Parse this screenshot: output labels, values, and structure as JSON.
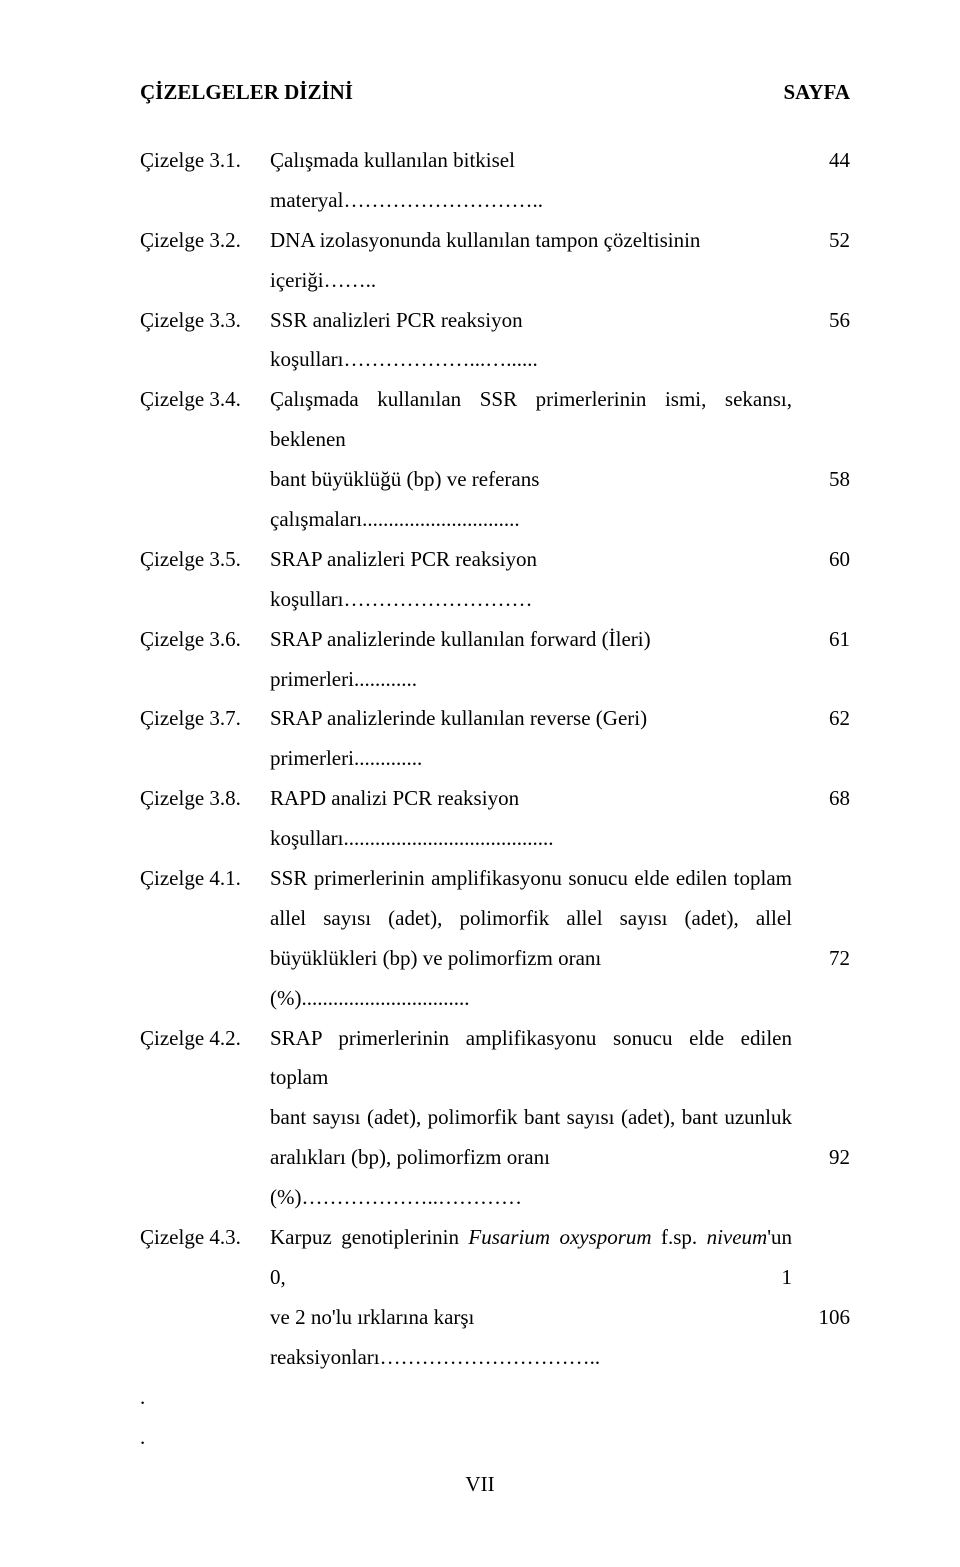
{
  "header": {
    "left": "ÇİZELGELER DİZİNİ",
    "right": "SAYFA"
  },
  "entries": [
    {
      "label": "Çizelge 3.1.",
      "lines": [
        {
          "text": "Çalışmada kullanılan bitkisel materyal………………………..",
          "page": "44",
          "justify": false
        }
      ]
    },
    {
      "label": "Çizelge 3.2.",
      "lines": [
        {
          "text": "DNA izolasyonunda kullanılan tampon çözeltisinin içeriği……..",
          "page": "52",
          "justify": false
        }
      ]
    },
    {
      "label": "Çizelge 3.3.",
      "lines": [
        {
          "text": "SSR analizleri PCR reaksiyon koşulları………………...…......",
          "page": "56",
          "justify": false
        }
      ]
    },
    {
      "label": "Çizelge 3.4.",
      "lines": [
        {
          "text": "Çalışmada kullanılan SSR primerlerinin ismi, sekansı, beklenen",
          "page": "",
          "justify": true
        },
        {
          "text": "bant büyüklüğü (bp) ve referans çalışmaları..............................",
          "page": "58",
          "justify": false
        }
      ]
    },
    {
      "label": "Çizelge 3.5.",
      "lines": [
        {
          "text": "SRAP analizleri PCR reaksiyon koşulları………………………",
          "page": "60",
          "justify": false
        }
      ]
    },
    {
      "label": "Çizelge 3.6.",
      "lines": [
        {
          "text": "SRAP analizlerinde kullanılan forward (İleri) primerleri............",
          "page": "61",
          "justify": false
        }
      ]
    },
    {
      "label": "Çizelge 3.7.",
      "lines": [
        {
          "text": "SRAP analizlerinde kullanılan reverse (Geri) primerleri.............",
          "page": "62",
          "justify": false
        }
      ]
    },
    {
      "label": "Çizelge 3.8.",
      "lines": [
        {
          "text": "RAPD analizi PCR reaksiyon koşulları........................................",
          "page": "68",
          "justify": false
        }
      ]
    },
    {
      "label": "Çizelge 4.1.",
      "lines": [
        {
          "text": "SSR primerlerinin amplifikasyonu sonucu elde edilen toplam",
          "page": "",
          "justify": true
        },
        {
          "text": "allel sayısı (adet), polimorfik allel sayısı (adet), allel",
          "page": "",
          "justify": true
        },
        {
          "text": "büyüklükleri (bp) ve polimorfizm oranı (%)................................",
          "page": "72",
          "justify": false
        }
      ]
    },
    {
      "label": "Çizelge 4.2.",
      "lines": [
        {
          "text": "SRAP primerlerinin amplifikasyonu sonucu elde edilen toplam",
          "page": "",
          "justify": true
        },
        {
          "text": "bant sayısı (adet), polimorfik bant sayısı (adet), bant uzunluk",
          "page": "",
          "justify": true
        },
        {
          "text": "aralıkları (bp), polimorfizm oranı (%)………………..…………",
          "page": "92",
          "justify": false
        }
      ]
    },
    {
      "label": "Çizelge 4.3.",
      "lines": [
        {
          "text_html": "Karpuz genotiplerinin <span class=\"italic\">Fusarium oxysporum</span> f.sp. <span class=\"italic\">niveum</span>'un 0, 1",
          "page": "",
          "justify": true
        },
        {
          "text": "ve 2 no'lu ırklarına karşı reaksiyonları…………………………..",
          "page": "106",
          "justify": false
        }
      ]
    }
  ],
  "trailing_dots": [
    ".",
    "."
  ],
  "footer": "VII"
}
